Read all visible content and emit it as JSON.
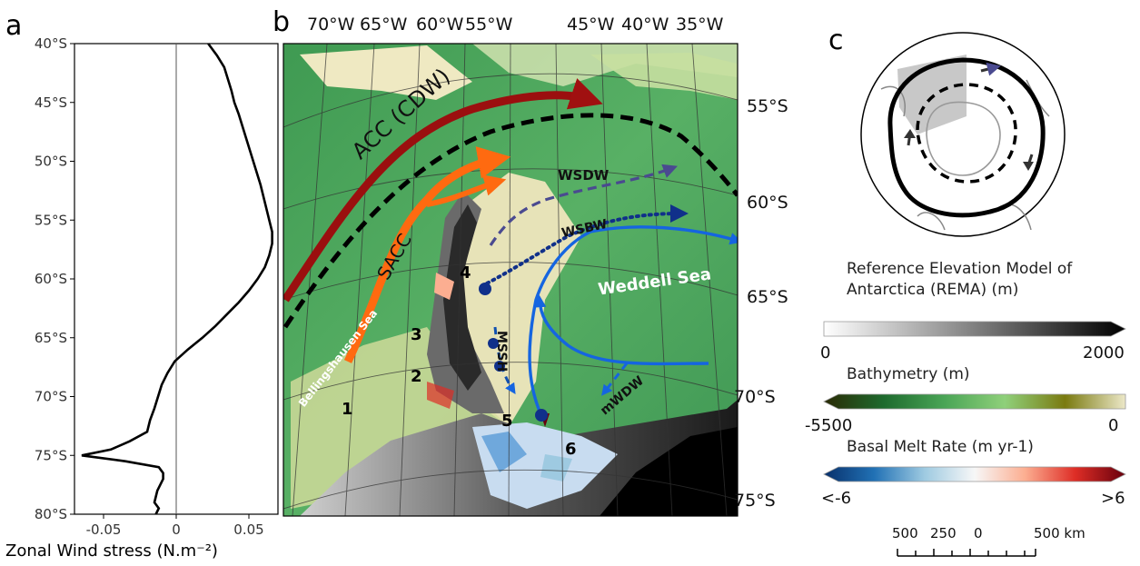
{
  "panel_a": {
    "letter": "a",
    "lat_ticks": [
      "40°S",
      "45°S",
      "50°S",
      "55°S",
      "60°S",
      "65°S",
      "70°S",
      "75°S",
      "80°S"
    ],
    "x_ticks": [
      "-0.05",
      "0",
      "0.05"
    ],
    "xlabel": "Zonal Wind stress (N.m⁻²)",
    "chart_data": {
      "type": "line",
      "xlabel": "Zonal Wind stress (N.m⁻²)",
      "ylabel": "",
      "xlim": [
        -0.07,
        0.07
      ],
      "ylim": [
        -80,
        -40
      ],
      "x": [
        0.022,
        0.028,
        0.033,
        0.038,
        0.04,
        0.043,
        0.048,
        0.053,
        0.058,
        0.062,
        0.064,
        0.066,
        0.066,
        0.064,
        0.061,
        0.056,
        0.05,
        0.043,
        0.035,
        0.027,
        0.018,
        0.008,
        -0.001,
        -0.006,
        -0.01,
        -0.015,
        -0.018,
        -0.02,
        -0.032,
        -0.045,
        -0.065,
        -0.035,
        -0.012,
        -0.009,
        -0.009,
        -0.013,
        -0.015,
        -0.012,
        -0.014
      ],
      "y": [
        -40,
        -41,
        -42,
        -44,
        -45,
        -46,
        -48,
        -50,
        -52,
        -54,
        -55,
        -56,
        -57,
        -58,
        -59,
        -60,
        -61,
        -62,
        -63,
        -64,
        -65,
        -66,
        -67,
        -68,
        -69,
        -71,
        -72,
        -73,
        -73.8,
        -74.5,
        -75,
        -75.5,
        -76,
        -76.5,
        -77,
        -78,
        -79,
        -79.5,
        -80
      ]
    }
  },
  "panel_b": {
    "letter": "b",
    "lon_labels": [
      "70°W",
      "65°W",
      "60°W",
      "55°W",
      "45°W",
      "40°W",
      "35°W"
    ],
    "lat_labels": [
      "55°S",
      "60°S",
      "65°S",
      "70°S",
      "75°S"
    ],
    "currents": {
      "acc": "ACC (CDW)",
      "sacc": "SACC",
      "wsdw": "WSDW",
      "wsbw": "WSBW",
      "mssh": "MSSH",
      "mwdw": "mWDW"
    },
    "places": {
      "weddell": "Weddell Sea",
      "bellingshausen": "Bellingshausen Sea"
    },
    "sites": [
      "1",
      "2",
      "3",
      "4",
      "5",
      "6"
    ]
  },
  "panel_c": {
    "letter": "c",
    "rema_title_1": "Reference Elevation Model of",
    "rema_title_2": "Antarctica (REMA) (m)",
    "rema_min": "0",
    "rema_max": "2000",
    "bathy_title": "Bathymetry (m)",
    "bathy_min": "-5500",
    "bathy_max": "0",
    "melt_title": "Basal Melt Rate (m yr-1)",
    "melt_min": "<-6",
    "melt_max": ">6",
    "scale_labels": [
      "500",
      "250",
      "0",
      "500 km"
    ],
    "colors": {
      "rema": [
        "#ffffff",
        "#000000"
      ],
      "bathy": [
        "#2a2a05",
        "#1e6b2e",
        "#4aa556",
        "#8fd07a",
        "#7a7a10",
        "#ece8c8"
      ],
      "melt": [
        "#08306b",
        "#2171b5",
        "#9ecae1",
        "#f7f7f7",
        "#fcae91",
        "#de2d26",
        "#67000d"
      ]
    }
  }
}
